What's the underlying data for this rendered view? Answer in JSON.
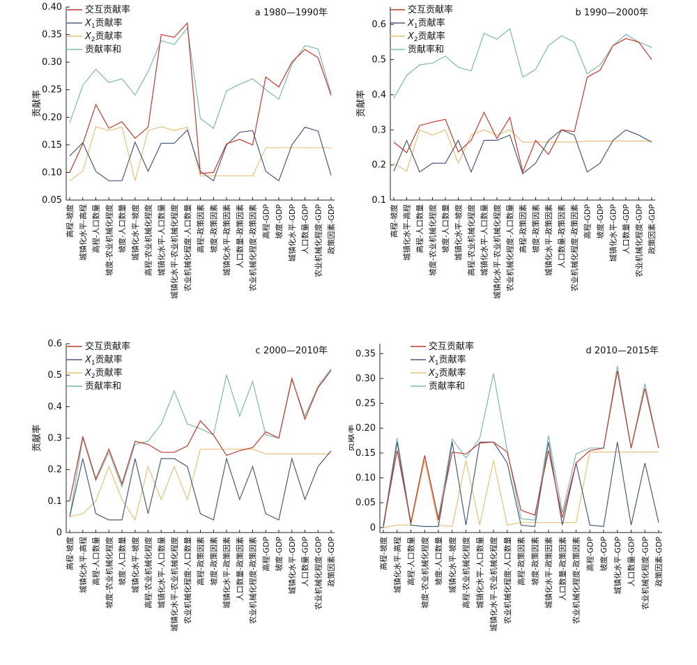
{
  "colors": {
    "interaction": "#c0392b",
    "x1": "#4a5a7a",
    "x2": "#e8c07a",
    "sum": "#7fb7b0"
  },
  "chart_data": [
    {
      "type": "line",
      "title": "a 1980—1990年",
      "ylabel": "贡献率",
      "ylim": [
        0.05,
        0.4
      ],
      "yticks": [
        "0.05",
        "0.10",
        "0.15",
        "0.20",
        "0.25",
        "0.30",
        "0.35",
        "0.40"
      ],
      "legend_position": "top-left",
      "categories": [
        "高程-坡度",
        "城镇化水平-高程",
        "高程-人口数量",
        "坡度-农业机械化程度",
        "坡度-人口数量",
        "城镇化水平-坡度",
        "高程-农业机械化程度",
        "城镇化水平-人口数量",
        "城镇化水平-农业机械化程度",
        "农业机械化程度-人口数量",
        "高程-政策因素",
        "坡度-政策因素",
        "城镇化水平-政策因素",
        "人口数量-政策因素",
        "农业机械化程度-政策因素",
        "高程-GDP",
        "坡度-GDP",
        "城镇化水平-GDP",
        "人口数量-GDP",
        "农业机械化程度-GDP",
        "政策因素-GDP"
      ],
      "series": [
        {
          "name": "交互贡献率",
          "color_key": "interaction",
          "values": [
            0.1,
            0.152,
            0.223,
            0.18,
            0.192,
            0.162,
            0.182,
            0.35,
            0.345,
            0.371,
            0.098,
            0.1,
            0.152,
            0.16,
            0.15,
            0.273,
            0.255,
            0.3,
            0.323,
            0.308,
            0.24
          ]
        },
        {
          "name": "X1贡献率",
          "label_main": "X",
          "label_sub": "1",
          "label_rest": "贡献率",
          "color_key": "x1",
          "values": [
            0.13,
            0.154,
            0.102,
            0.085,
            0.085,
            0.155,
            0.102,
            0.153,
            0.153,
            0.177,
            0.102,
            0.085,
            0.15,
            0.173,
            0.176,
            0.102,
            0.085,
            0.15,
            0.182,
            0.175,
            0.095
          ]
        },
        {
          "name": "X2贡献率",
          "label_main": "X",
          "label_sub": "2",
          "label_rest": "贡献率",
          "color_key": "x2",
          "values": [
            0.085,
            0.102,
            0.183,
            0.176,
            0.182,
            0.085,
            0.176,
            0.183,
            0.176,
            0.182,
            0.094,
            0.094,
            0.094,
            0.094,
            0.094,
            0.145,
            0.145,
            0.145,
            0.145,
            0.145,
            0.145
          ]
        },
        {
          "name": "贡献率和",
          "color_key": "sum",
          "values": [
            0.19,
            0.258,
            0.287,
            0.263,
            0.27,
            0.24,
            0.283,
            0.339,
            0.332,
            0.362,
            0.198,
            0.18,
            0.248,
            0.26,
            0.27,
            0.25,
            0.233,
            0.296,
            0.33,
            0.324,
            0.243
          ]
        }
      ]
    },
    {
      "type": "line",
      "title": "b 1990—2000年",
      "ylabel": "贡献率",
      "ylim": [
        0.1,
        0.65
      ],
      "yticks": [
        "0.1",
        "0.2",
        "0.3",
        "0.4",
        "0.5",
        "0.6"
      ],
      "yticks_values": [
        0.1,
        0.2,
        0.3,
        0.4,
        0.5,
        0.6
      ],
      "legend_position": "top-left",
      "categories": [
        "高程-坡度",
        "城镇化水平-高程",
        "高程-人口数量",
        "坡度-农业机械化程度",
        "坡度-人口数量",
        "城镇化水平-坡度",
        "高程-农业机械化程度",
        "城镇化水平-人口数量",
        "城镇化水平-农业机械化程度",
        "农业机械化程度-人口数量",
        "高程-政策因素",
        "坡度-政策因素",
        "城镇化水平-政策因素",
        "人口数量-政策因素",
        "农业机械化程度-政策因素",
        "高程-GDP",
        "坡度-GDP",
        "城镇化水平-GDP",
        "人口数量-GDP",
        "农业机械化程度-GDP",
        "政策因素-GDP"
      ],
      "series": [
        {
          "name": "交互贡献率",
          "color_key": "interaction",
          "values": [
            0.265,
            0.235,
            0.312,
            0.322,
            0.33,
            0.237,
            0.27,
            0.35,
            0.275,
            0.335,
            0.18,
            0.27,
            0.23,
            0.3,
            0.295,
            0.45,
            0.47,
            0.54,
            0.56,
            0.55,
            0.5
          ]
        },
        {
          "name": "X1贡献率",
          "color_key": "x1",
          "values": [
            0.182,
            0.27,
            0.18,
            0.205,
            0.205,
            0.27,
            0.18,
            0.27,
            0.27,
            0.285,
            0.175,
            0.205,
            0.27,
            0.3,
            0.285,
            0.18,
            0.205,
            0.27,
            0.3,
            0.285,
            0.265
          ]
        },
        {
          "name": "X2贡献率",
          "color_key": "x2",
          "values": [
            0.205,
            0.182,
            0.3,
            0.285,
            0.3,
            0.205,
            0.285,
            0.3,
            0.285,
            0.3,
            0.265,
            0.265,
            0.265,
            0.265,
            0.265,
            0.268,
            0.268,
            0.268,
            0.268,
            0.268,
            0.268
          ]
        },
        {
          "name": "贡献率和",
          "color_key": "sum",
          "values": [
            0.39,
            0.455,
            0.485,
            0.49,
            0.51,
            0.478,
            0.468,
            0.575,
            0.558,
            0.588,
            0.45,
            0.472,
            0.54,
            0.568,
            0.55,
            0.46,
            0.485,
            0.54,
            0.572,
            0.55,
            0.535
          ]
        }
      ]
    },
    {
      "type": "line",
      "title": "c 2000—2010年",
      "ylabel": "贡献率",
      "ylim": [
        0,
        0.6
      ],
      "yticks": [
        "0",
        "0.1",
        "0.2",
        "0.3",
        "0.4",
        "0.5",
        "0.6"
      ],
      "yticks_values": [
        0,
        0.1,
        0.2,
        0.3,
        0.4,
        0.5,
        0.6
      ],
      "legend_position": "top-left",
      "categories": [
        "高程-坡度",
        "城镇化水平-高程",
        "高程-人口数量",
        "坡度-农业机械化程度",
        "坡度-人口数量",
        "城镇化水平-坡度",
        "高程-农业机械化程度",
        "城镇化水平-人口数量",
        "城镇化水平-农业机械化程度",
        "农业机械化程度-人口数量",
        "高程-政策因素",
        "坡度-政策因素",
        "城镇化水平-政策因素",
        "人口数量-政策因素",
        "农业机械化程度-政策因素",
        "高程-GDP",
        "坡度-GDP",
        "城镇化水平-GDP",
        "人口数量-GDP",
        "农业机械化程度-GDP",
        "政策因素-GDP"
      ],
      "series": [
        {
          "name": "交互贡献率",
          "color_key": "interaction",
          "values": [
            0.1,
            0.305,
            0.17,
            0.265,
            0.155,
            0.29,
            0.28,
            0.255,
            0.255,
            0.275,
            0.355,
            0.31,
            0.245,
            0.26,
            0.27,
            0.32,
            0.3,
            0.49,
            0.36,
            0.46,
            0.515
          ]
        },
        {
          "name": "X1贡献率",
          "color_key": "x1",
          "values": [
            0.05,
            0.235,
            0.06,
            0.04,
            0.04,
            0.235,
            0.06,
            0.235,
            0.235,
            0.21,
            0.06,
            0.04,
            0.235,
            0.105,
            0.21,
            0.06,
            0.04,
            0.235,
            0.105,
            0.21,
            0.26
          ]
        },
        {
          "name": "X2贡献率",
          "color_key": "x2",
          "values": [
            0.05,
            0.06,
            0.1,
            0.21,
            0.105,
            0.04,
            0.21,
            0.105,
            0.21,
            0.105,
            0.265,
            0.265,
            0.265,
            0.265,
            0.265,
            0.25,
            0.25,
            0.25,
            0.25,
            0.25,
            0.25
          ]
        },
        {
          "name": "贡献率和",
          "color_key": "sum",
          "values": [
            0.05,
            0.3,
            0.165,
            0.255,
            0.145,
            0.28,
            0.29,
            0.345,
            0.45,
            0.345,
            0.33,
            0.31,
            0.5,
            0.37,
            0.48,
            0.31,
            0.3,
            0.485,
            0.37,
            0.465,
            0.52
          ]
        }
      ]
    },
    {
      "type": "line",
      "title": "d 2010—2015年",
      "ylabel": "贡献率",
      "ylim": [
        -0.01,
        0.37
      ],
      "yticks": [
        "0",
        "0.05",
        "0.10",
        "0.15",
        "0.20",
        "0.25",
        "0.30",
        "0.35"
      ],
      "yticks_values": [
        0,
        0.05,
        0.1,
        0.15,
        0.2,
        0.25,
        0.3,
        0.35
      ],
      "legend_position": "top-right",
      "categories": [
        "高程-坡度",
        "城镇化水平-高程",
        "高程-人口数量",
        "坡度-农业机械化程度",
        "坡度-人口数量",
        "城镇化水平-坡度",
        "高程-农业机械化程度",
        "城镇化水平-人口数量",
        "城镇化水平-农业机械化程度",
        "农业机械化程度-人口数量",
        "高程-政策因素",
        "坡度-政策因素",
        "城镇化水平-政策因素",
        "人口数量-政策因素",
        "农业机械化程度-政策因素",
        "高程-GDP",
        "坡度-GDP",
        "城镇化水平-GDP",
        "人口数量-GDP",
        "农业机械化程度-GDP",
        "政策因素-GDP"
      ],
      "series": [
        {
          "name": "交互贡献率",
          "color_key": "interaction",
          "values": [
            0.005,
            0.155,
            0.01,
            0.145,
            0.015,
            0.152,
            0.148,
            0.17,
            0.172,
            0.152,
            0.035,
            0.025,
            0.155,
            0.02,
            0.13,
            0.155,
            0.16,
            0.315,
            0.16,
            0.28,
            0.16
          ]
        },
        {
          "name": "X1贡献率",
          "color_key": "x1",
          "values": [
            0.0,
            0.172,
            0.005,
            0.002,
            0.002,
            0.172,
            0.005,
            0.172,
            0.172,
            0.13,
            0.005,
            0.002,
            0.172,
            0.005,
            0.13,
            0.005,
            0.002,
            0.172,
            0.005,
            0.13,
            0.01
          ]
        },
        {
          "name": "X2贡献率",
          "color_key": "x2",
          "values": [
            0.0,
            0.005,
            0.005,
            0.135,
            0.005,
            0.002,
            0.135,
            0.005,
            0.135,
            0.005,
            0.01,
            0.01,
            0.01,
            0.01,
            0.01,
            0.152,
            0.152,
            0.152,
            0.152,
            0.152,
            0.152
          ]
        },
        {
          "name": "贡献率和",
          "color_key": "sum",
          "values": [
            0.005,
            0.18,
            0.01,
            0.145,
            0.02,
            0.178,
            0.14,
            0.18,
            0.31,
            0.155,
            0.018,
            0.015,
            0.185,
            0.03,
            0.148,
            0.16,
            0.16,
            0.325,
            0.16,
            0.29,
            0.16
          ]
        }
      ]
    }
  ]
}
